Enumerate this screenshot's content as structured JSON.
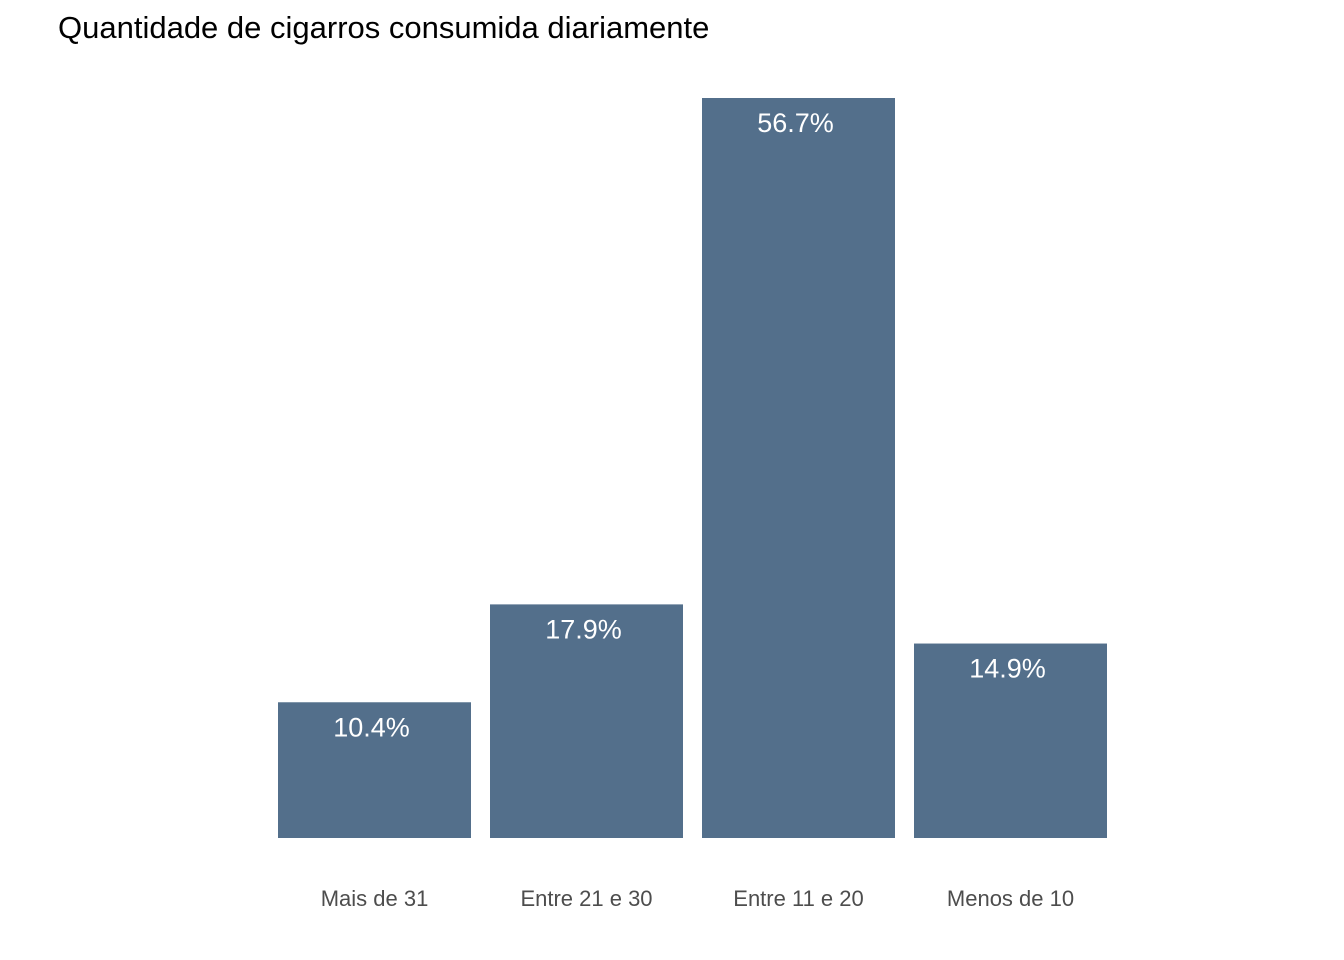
{
  "chart_data": {
    "type": "bar",
    "title": "Quantidade de cigarros consumida diariamente",
    "xlabel": "",
    "ylabel": "",
    "categories": [
      "Mais de 31",
      "Entre 21 e 30",
      "Entre 11 e 20",
      "Menos de 10"
    ],
    "values": [
      10.4,
      17.9,
      56.7,
      14.9
    ],
    "value_labels": [
      "10.4%",
      "17.9%",
      "56.7%",
      "14.9%"
    ],
    "ylim": [
      0,
      56.7
    ],
    "grid": false,
    "legend": "none",
    "bar_color": "#536f8b",
    "label_color": "#ffffff"
  }
}
